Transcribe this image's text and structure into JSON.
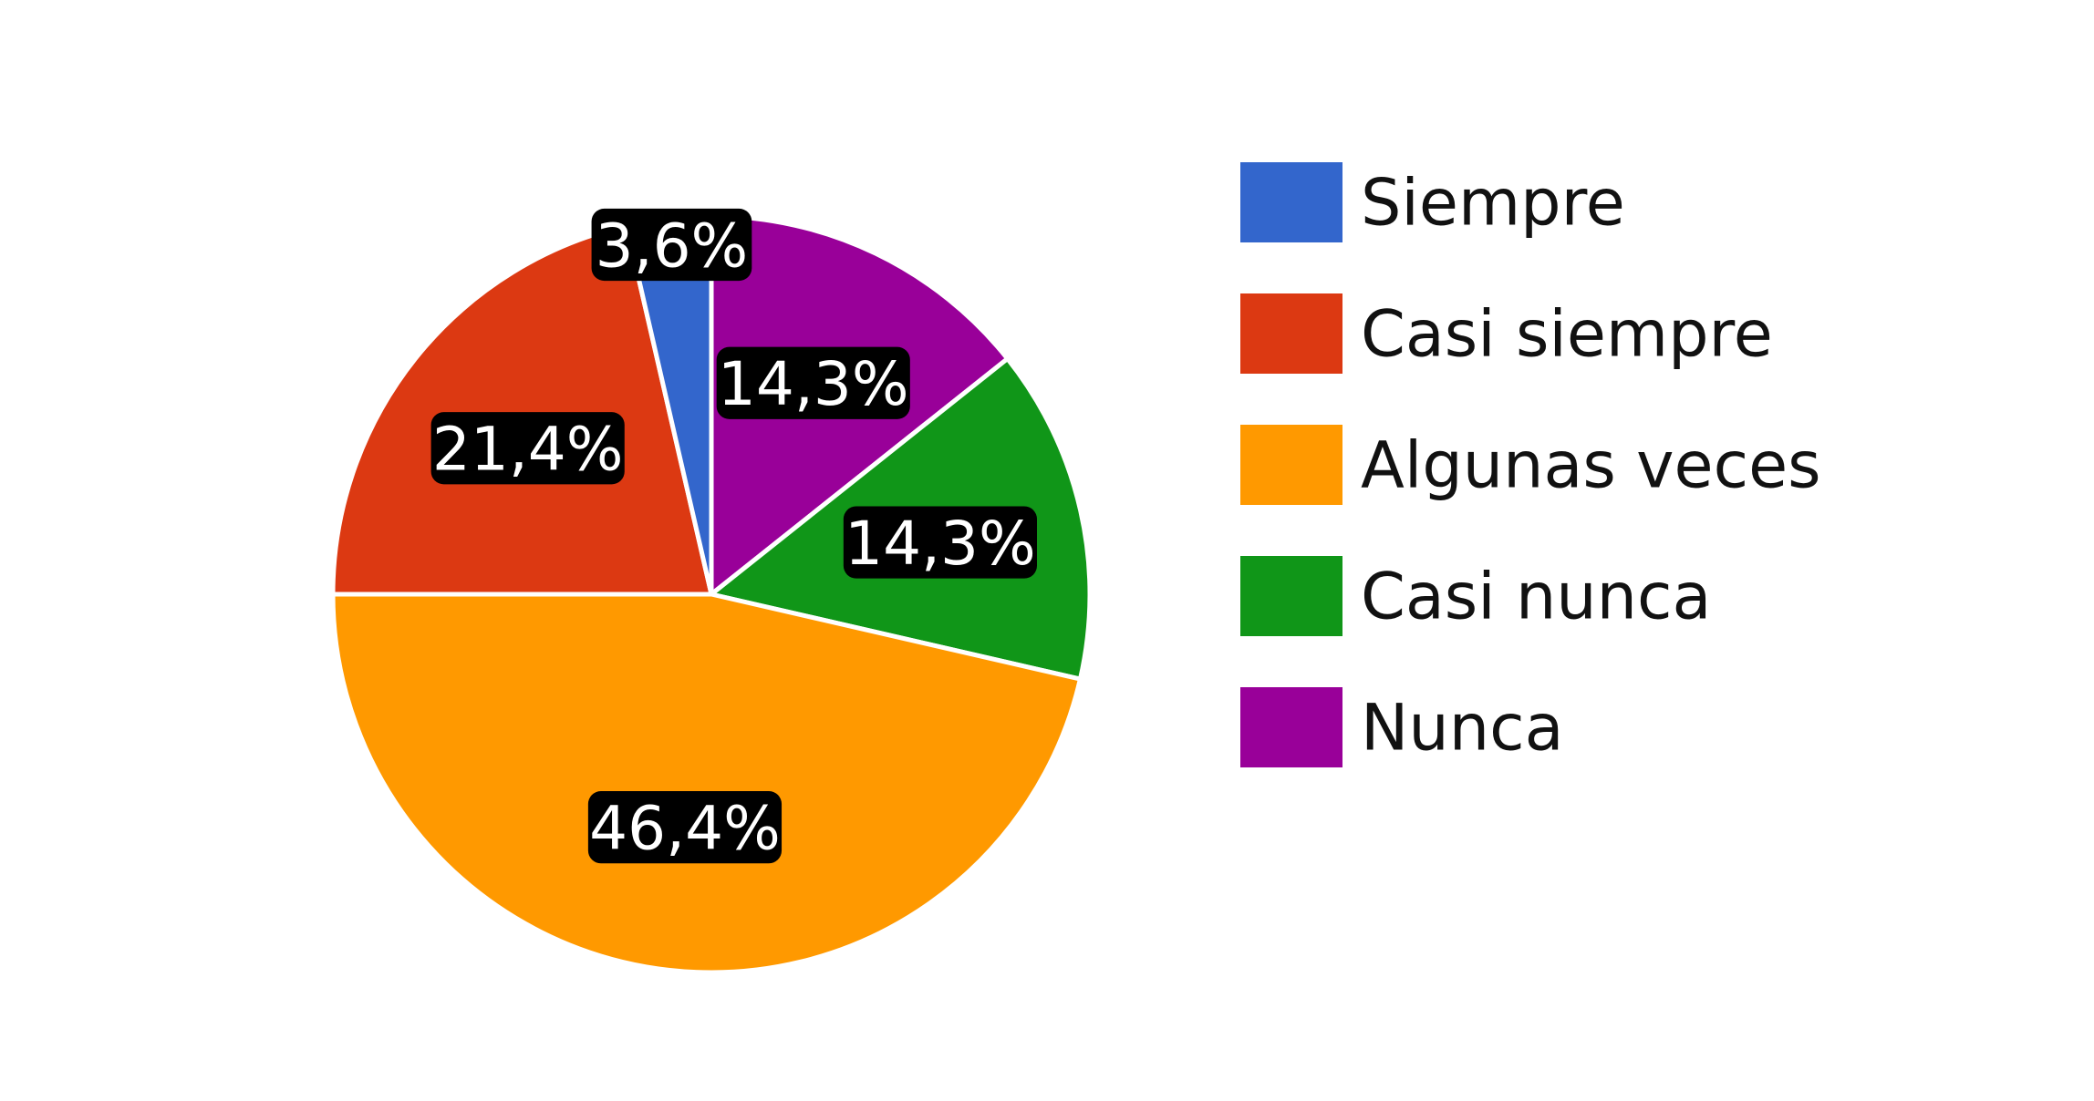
{
  "chart_data": {
    "type": "pie",
    "title": "",
    "legend_position": "right",
    "slices": [
      {
        "label": "Siempre",
        "value": 3.6,
        "display": "3,6%",
        "color": "#3366cc"
      },
      {
        "label": "Casi siempre",
        "value": 21.4,
        "display": "21,4%",
        "color": "#dc3912"
      },
      {
        "label": "Algunas veces",
        "value": 46.4,
        "display": "46,4%",
        "color": "#ff9900"
      },
      {
        "label": "Casi nunca",
        "value": 14.3,
        "display": "14,3%",
        "color": "#109618"
      },
      {
        "label": "Nunca",
        "value": 14.3,
        "display": "14,3%",
        "color": "#990099"
      }
    ]
  }
}
